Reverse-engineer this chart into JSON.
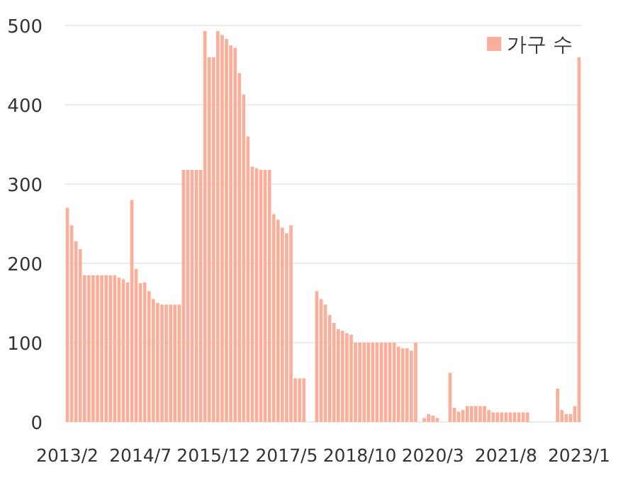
{
  "chart_data": {
    "type": "bar",
    "categories": [
      "2013/2",
      null,
      null,
      null,
      null,
      null,
      null,
      null,
      null,
      null,
      null,
      null,
      null,
      null,
      null,
      null,
      null,
      "2014/7",
      null,
      null,
      null,
      null,
      null,
      null,
      null,
      null,
      null,
      null,
      null,
      null,
      null,
      null,
      null,
      null,
      "2015/12",
      null,
      null,
      null,
      null,
      null,
      null,
      null,
      null,
      null,
      null,
      null,
      null,
      null,
      null,
      null,
      null,
      "2017/5",
      null,
      null,
      null,
      null,
      null,
      null,
      null,
      null,
      null,
      null,
      null,
      null,
      null,
      null,
      null,
      null,
      "2018/10",
      null,
      null,
      null,
      null,
      null,
      null,
      null,
      null,
      null,
      null,
      null,
      null,
      null,
      null,
      null,
      null,
      "2020/3",
      null,
      null,
      null,
      null,
      null,
      null,
      null,
      null,
      null,
      null,
      null,
      null,
      null,
      null,
      null,
      null,
      "2021/8",
      null,
      null,
      null,
      null,
      null,
      null,
      null,
      null,
      null,
      null,
      null,
      null,
      null,
      null,
      null,
      null,
      "2023/1"
    ],
    "series": [
      {
        "name": "가구 수",
        "color": "#fbae9a",
        "values": [
          270,
          248,
          228,
          218,
          185,
          185,
          185,
          185,
          185,
          185,
          185,
          185,
          182,
          180,
          176,
          280,
          193,
          175,
          176,
          165,
          155,
          150,
          148,
          148,
          148,
          148,
          148,
          318,
          318,
          318,
          318,
          318,
          493,
          460,
          460,
          493,
          488,
          483,
          475,
          472,
          440,
          413,
          360,
          322,
          320,
          318,
          318,
          318,
          262,
          255,
          245,
          238,
          248,
          55,
          55,
          55,
          0,
          0,
          165,
          155,
          148,
          135,
          125,
          117,
          115,
          112,
          110,
          100,
          100,
          100,
          100,
          100,
          100,
          100,
          100,
          100,
          100,
          95,
          93,
          93,
          90,
          100,
          0,
          5,
          10,
          8,
          5,
          0,
          0,
          62,
          18,
          13,
          15,
          20,
          20,
          20,
          20,
          20,
          15,
          12,
          12,
          12,
          12,
          12,
          12,
          12,
          12,
          12,
          0,
          0,
          0,
          0,
          0,
          0,
          42,
          15,
          10,
          10,
          20,
          460
        ]
      }
    ],
    "ylim": [
      0,
      500
    ],
    "yticks": [
      0,
      100,
      200,
      300,
      400,
      500
    ],
    "grid": "y",
    "legend": "top right"
  }
}
